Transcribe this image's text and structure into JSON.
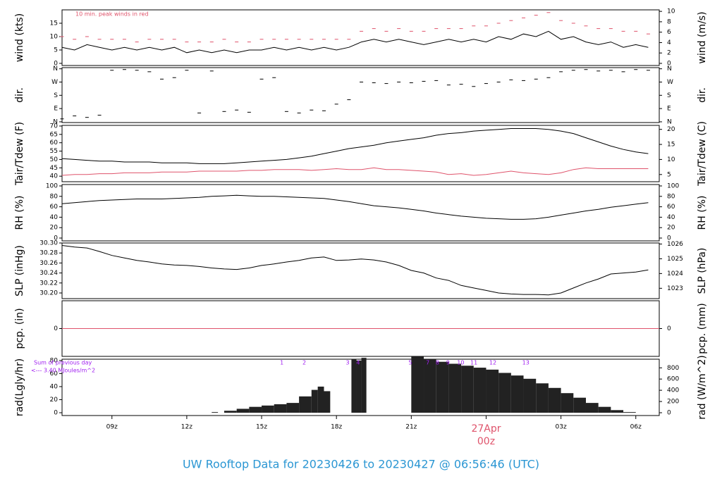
{
  "chart_data": [
    {
      "type": "line",
      "ylabel": "wind (kts)",
      "y2label": "wind (m/s)",
      "ylim": [
        -0.8,
        20
      ],
      "yticks": [
        0,
        5,
        10,
        15
      ],
      "y2lim": [
        -0.41,
        10.29
      ],
      "y2ticks": [
        0,
        2,
        4,
        6,
        8,
        10
      ],
      "annotation": "10 min. peak winds in red",
      "annotation_color": "#df536b",
      "x": [
        7,
        7.5,
        8,
        8.5,
        9,
        9.5,
        10,
        10.5,
        11,
        11.5,
        12,
        12.5,
        13,
        13.5,
        14,
        14.5,
        15,
        15.5,
        16,
        16.5,
        17,
        17.5,
        18,
        18.5,
        19,
        19.5,
        20,
        20.5,
        21,
        21.5,
        22,
        22.5,
        23,
        23.5,
        24,
        24.5,
        25,
        25.5,
        26,
        26.5,
        27,
        27.5,
        28,
        28.5,
        29,
        29.5,
        30,
        30.5
      ],
      "series": [
        {
          "style": "line",
          "color": "#000000",
          "values": [
            6,
            5,
            7,
            6,
            5,
            6,
            5,
            6,
            5,
            6,
            4,
            5,
            4,
            5,
            4,
            5,
            5,
            6,
            5,
            6,
            5,
            6,
            5,
            6,
            8,
            9,
            8,
            9,
            8,
            7,
            8,
            9,
            8,
            9,
            8,
            10,
            9,
            11,
            10,
            12,
            9,
            10,
            8,
            7,
            8,
            6,
            7,
            6
          ]
        },
        {
          "style": "dash",
          "color": "#df536b",
          "values": [
            10,
            9,
            10,
            9,
            9,
            9,
            8,
            9,
            9,
            9,
            8,
            8,
            8,
            9,
            8,
            8,
            9,
            9,
            9,
            9,
            9,
            9,
            9,
            9,
            12,
            13,
            12,
            13,
            12,
            12,
            13,
            13,
            13,
            14,
            14,
            15,
            16,
            17,
            18,
            19,
            16,
            15,
            14,
            13,
            13,
            12,
            12,
            11
          ]
        }
      ]
    },
    {
      "type": "scatter",
      "ylabel": "dir.",
      "y2label": "dir.",
      "ylim": [
        -5,
        368
      ],
      "yticks": [
        {
          "value": 0,
          "label": "N"
        },
        {
          "value": 90,
          "label": "E"
        },
        {
          "value": 180,
          "label": "S"
        },
        {
          "value": 270,
          "label": "W"
        },
        {
          "value": 360,
          "label": "N"
        }
      ],
      "y2lim": [
        -5,
        368
      ],
      "y2ticks": [
        {
          "value": 0,
          "label": "N"
        },
        {
          "value": 90,
          "label": "E"
        },
        {
          "value": 180,
          "label": "S"
        },
        {
          "value": 270,
          "label": "W"
        },
        {
          "value": 360,
          "label": "N"
        }
      ],
      "x": [
        7,
        7.5,
        8,
        8.5,
        9,
        9.5,
        10,
        10.5,
        11,
        11.5,
        12,
        12.5,
        13,
        13.5,
        14,
        14.5,
        15,
        15.5,
        16,
        16.5,
        17,
        17.5,
        18,
        18.5,
        19,
        19.5,
        20,
        20.5,
        21,
        21.5,
        22,
        22.5,
        23,
        23.5,
        24,
        24.5,
        25,
        25.5,
        26,
        26.5,
        27,
        27.5,
        28,
        28.5,
        29,
        29.5,
        30,
        30.5
      ],
      "series": [
        {
          "style": "dash",
          "color": "#000000",
          "values": [
            20,
            40,
            30,
            45,
            350,
            355,
            350,
            340,
            290,
            300,
            350,
            60,
            345,
            70,
            80,
            65,
            290,
            300,
            70,
            60,
            80,
            75,
            120,
            150,
            270,
            265,
            260,
            270,
            265,
            275,
            280,
            250,
            255,
            240,
            260,
            270,
            285,
            280,
            290,
            300,
            340,
            350,
            355,
            345,
            350,
            340,
            355,
            350
          ]
        }
      ]
    },
    {
      "type": "line",
      "ylabel": "Tair/Tdew (F)",
      "y2label": "Tair/Tdew (C)",
      "ylim": [
        36.7,
        70.4
      ],
      "yticks": [
        40,
        45,
        50,
        55,
        60,
        65,
        70
      ],
      "y2lim": [
        2.61,
        21.33
      ],
      "y2ticks": [
        5,
        10,
        15,
        20
      ],
      "x": [
        7,
        7.5,
        8,
        8.5,
        9,
        9.5,
        10,
        10.5,
        11,
        11.5,
        12,
        12.5,
        13,
        13.5,
        14,
        14.5,
        15,
        15.5,
        16,
        16.5,
        17,
        17.5,
        18,
        18.5,
        19,
        19.5,
        20,
        20.5,
        21,
        21.5,
        22,
        22.5,
        23,
        23.5,
        24,
        24.5,
        25,
        25.5,
        26,
        26.5,
        27,
        27.5,
        28,
        28.5,
        29,
        29.5,
        30,
        30.5
      ],
      "series": [
        {
          "style": "line",
          "color": "#000000",
          "values": [
            50.5,
            50,
            49.5,
            49,
            49,
            48.5,
            48.5,
            48.5,
            48,
            48,
            48,
            47.5,
            47.5,
            47.5,
            48,
            48.5,
            49,
            49.5,
            50,
            51,
            52,
            53.5,
            55,
            56.5,
            57.5,
            58.5,
            60,
            61,
            62,
            63,
            64.5,
            65.5,
            66,
            67,
            67.5,
            68,
            68.5,
            68.5,
            68.5,
            68,
            67,
            65.5,
            63,
            60.5,
            58,
            56,
            54.5,
            53.5
          ]
        },
        {
          "style": "line",
          "color": "#df536b",
          "values": [
            40.5,
            41,
            41,
            41.5,
            41.5,
            42,
            42,
            42,
            42.5,
            42.5,
            42.5,
            43,
            43,
            43,
            43,
            43.5,
            43.5,
            44,
            44,
            44,
            43.5,
            44,
            44.5,
            44,
            44,
            45,
            44,
            44,
            43.5,
            43,
            42.5,
            41,
            41.5,
            40.5,
            41,
            42,
            43,
            42,
            41.5,
            41,
            42,
            44,
            45,
            44.5,
            44.5,
            44.5,
            44.5,
            44.5
          ]
        }
      ]
    },
    {
      "type": "line",
      "ylabel": "RH (%)",
      "y2label": "RH (%)",
      "ylim": [
        -5.4,
        102.7
      ],
      "yticks": [
        0,
        20,
        40,
        60,
        80,
        100
      ],
      "y2lim": [
        -5.4,
        102.7
      ],
      "y2ticks": [
        0,
        20,
        40,
        60,
        80,
        100
      ],
      "x": [
        7,
        7.5,
        8,
        8.5,
        9,
        9.5,
        10,
        10.5,
        11,
        11.5,
        12,
        12.5,
        13,
        13.5,
        14,
        14.5,
        15,
        15.5,
        16,
        16.5,
        17,
        17.5,
        18,
        18.5,
        19,
        19.5,
        20,
        20.5,
        21,
        21.5,
        22,
        22.5,
        23,
        23.5,
        24,
        24.5,
        25,
        25.5,
        26,
        26.5,
        27,
        27.5,
        28,
        28.5,
        29,
        29.5,
        30,
        30.5
      ],
      "series": [
        {
          "style": "line",
          "color": "#000000",
          "values": [
            66,
            68,
            70,
            72,
            73,
            74,
            75,
            75,
            75,
            76,
            77,
            78,
            80,
            81,
            82,
            81,
            80,
            80,
            79,
            78,
            77,
            76,
            73,
            70,
            66,
            62,
            60,
            58,
            55,
            52,
            48,
            45,
            42,
            40,
            38,
            37,
            36,
            36,
            37,
            40,
            44,
            48,
            52,
            55,
            59,
            62,
            65,
            68
          ]
        }
      ]
    },
    {
      "type": "line",
      "ylabel": "SLP (inHg)",
      "y2label": "SLP (hPa)",
      "ylim": [
        30.1887,
        30.3
      ],
      "yticks": [
        {
          "value": 30.2,
          "label": "30.20"
        },
        30.22,
        30.24,
        30.26,
        30.28,
        {
          "value": 30.3,
          "label": "30.30"
        }
      ],
      "y2lim": [
        1022.3,
        1026.07
      ],
      "y2ticks": [
        1023,
        1024,
        1025,
        1026
      ],
      "x": [
        7,
        7.5,
        8,
        8.5,
        9,
        9.5,
        10,
        10.5,
        11,
        11.5,
        12,
        12.5,
        13,
        13.5,
        14,
        14.5,
        15,
        15.5,
        16,
        16.5,
        17,
        17.5,
        18,
        18.5,
        19,
        19.5,
        20,
        20.5,
        21,
        21.5,
        22,
        22.5,
        23,
        23.5,
        24,
        24.5,
        25,
        25.5,
        26,
        26.5,
        27,
        27.5,
        28,
        28.5,
        29,
        29.5,
        30,
        30.5
      ],
      "series": [
        {
          "style": "line",
          "color": "#000000",
          "values": [
            30.295,
            30.292,
            30.29,
            30.283,
            30.275,
            30.27,
            30.265,
            30.262,
            30.258,
            30.256,
            30.255,
            30.253,
            30.25,
            30.248,
            30.247,
            30.25,
            30.255,
            30.258,
            30.262,
            30.265,
            30.27,
            30.272,
            30.265,
            30.266,
            30.268,
            30.266,
            30.262,
            30.255,
            30.245,
            30.24,
            30.23,
            30.225,
            30.215,
            30.21,
            30.205,
            30.2,
            30.198,
            30.197,
            30.197,
            30.196,
            30.2,
            30.21,
            30.22,
            30.228,
            30.238,
            30.24,
            30.242,
            30.246
          ]
        }
      ]
    },
    {
      "type": "line",
      "ylabel": "pcp. (in)",
      "y2label": "pcp. (mm)",
      "ylim": [
        -1,
        1
      ],
      "yticks": [
        0
      ],
      "y2lim": [
        -25.4,
        25.4
      ],
      "y2ticks": [
        0
      ],
      "x": [
        7,
        30.94
      ],
      "series": [
        {
          "style": "line",
          "color": "#df536b",
          "values": [
            0,
            0
          ]
        }
      ]
    },
    {
      "type": "bar",
      "ylabel": "rad(Lgly/hr)",
      "y2label": "rad (W/m^2)",
      "ylim": [
        -4.3,
        82
      ],
      "yticks": [
        0,
        20,
        40,
        60,
        80
      ],
      "y2lim": [
        -50,
        953.7
      ],
      "y2ticks": [
        0,
        200,
        400,
        600,
        800
      ],
      "annotations": [
        "Sum of previous day",
        "<--- 3.40 MJoules/m^2"
      ],
      "annotation_color": "#a020f0",
      "markers": {
        "x": [
          15.81,
          16.71,
          18.45,
          18.87,
          20.96,
          21.66,
          22.05,
          22.47,
          22.98,
          23.51,
          24.27,
          25.59
        ],
        "labels": [
          "1",
          "2",
          "3",
          "4",
          "5",
          "7",
          "8",
          "9",
          "10",
          "11",
          "12",
          "13"
        ]
      },
      "x": [
        12.75,
        13,
        13.5,
        14,
        14.5,
        15,
        15.5,
        16,
        16.5,
        17,
        17.25,
        17.5,
        18.6,
        18.8,
        19.0,
        21.0,
        21.5,
        22,
        22.5,
        23,
        23.5,
        24,
        24.5,
        25,
        25.5,
        26,
        26.5,
        27,
        27.5,
        28,
        28.5,
        29,
        29.5
      ],
      "series": [
        {
          "style": "bar",
          "color": "#222222",
          "values": [
            0,
            1,
            3,
            6,
            9,
            11,
            13,
            15,
            25,
            35,
            40,
            33,
            82,
            80,
            84,
            86,
            82,
            78,
            75,
            72,
            69,
            66,
            61,
            57,
            52,
            45,
            38,
            30,
            23,
            15,
            9,
            4,
            1
          ]
        }
      ]
    }
  ],
  "x_axis": {
    "xlim": [
      7,
      30.94
    ],
    "xticks": [
      {
        "value": 9,
        "label": "09z"
      },
      {
        "value": 12,
        "label": "12z"
      },
      {
        "value": 15,
        "label": "15z"
      },
      {
        "value": 18,
        "label": "18z"
      },
      {
        "value": 21,
        "label": "21z"
      },
      {
        "value": 24,
        "label": "00z"
      },
      {
        "value": 27,
        "label": "03z"
      },
      {
        "value": 30,
        "label": "06z"
      }
    ],
    "date_label": {
      "value": 24,
      "label": "27Apr"
    },
    "date_color": "#df536b"
  },
  "footer": "UW Rooftop Data for 20230426  to  20230427 @ 06:56:46  (UTC)",
  "footer_color": "#2a96d3"
}
